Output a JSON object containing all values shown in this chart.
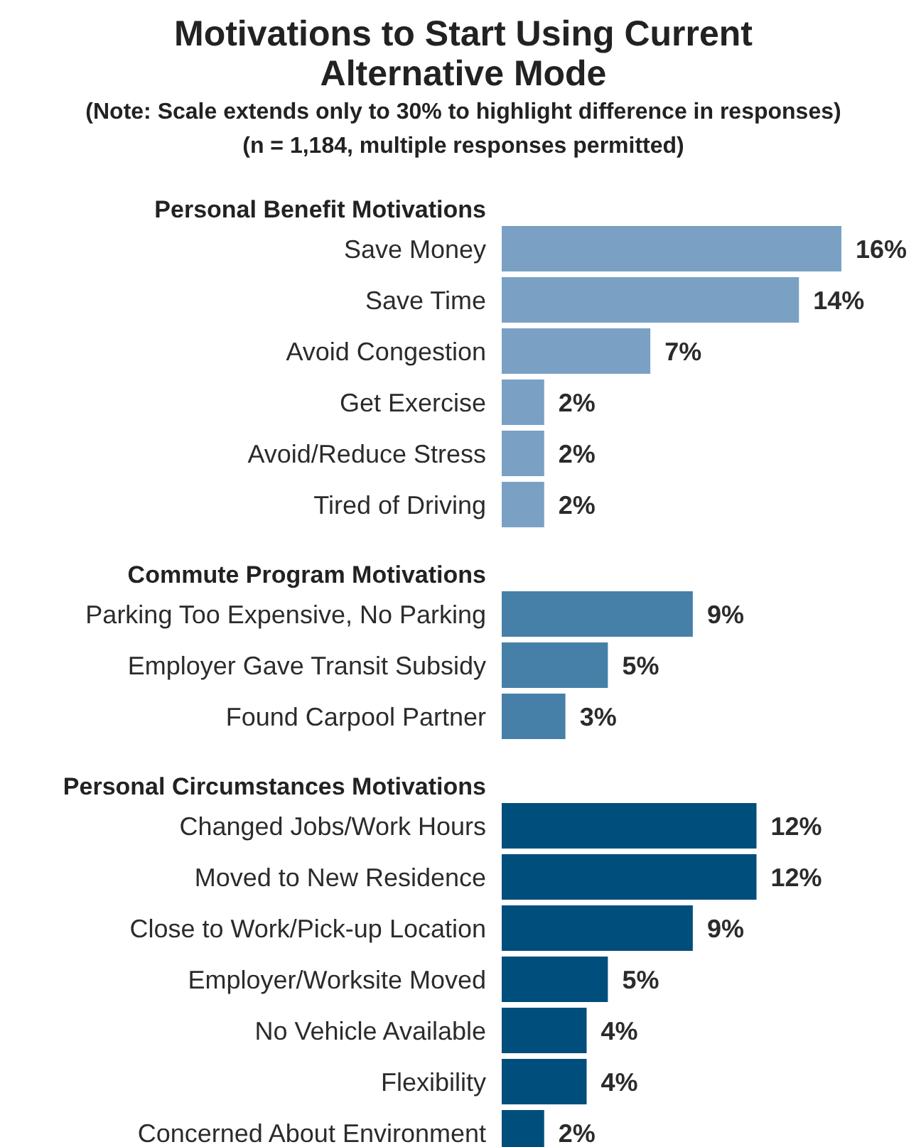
{
  "chart_data": {
    "type": "bar",
    "orientation": "horizontal",
    "stacked": true,
    "title": "Motivations to Start Using Current Alternative Mode",
    "subtitle": "(Note:  Scale extends only to 30% to highlight difference in responses)",
    "annotations": [
      "(n = 1,184, multiple responses permitted)"
    ],
    "categories": [
      "Save Money",
      "Save Time",
      "Avoid Congestion",
      "Get Exercise",
      "Avoid/Reduce Stress",
      "Tired of Driving",
      "Parking Too Expensive, No Parking",
      "Employer Gave Transit Subsidy",
      "Found Carpool Partner",
      "Changed Jobs/Work Hours",
      "Moved to New Residence",
      "Close to Work/Pick-up Location",
      "Employer/Worksite Moved",
      "No Vehicle Available",
      "Flexibility",
      "Concerned About Environment"
    ],
    "series": [
      {
        "name": "Personal Benefit Motivations",
        "color": "#7aa1c4",
        "values": [
          16,
          14,
          7,
          2,
          2,
          2,
          null,
          null,
          null,
          null,
          null,
          null,
          null,
          null,
          null,
          null
        ],
        "value_labels": [
          "16%",
          "14%",
          "7%",
          "2%",
          "2%",
          "2%",
          null,
          null,
          null,
          null,
          null,
          null,
          null,
          null,
          null,
          null
        ]
      },
      {
        "name": "Commute Program Motivations",
        "color": "#4680a8",
        "values": [
          null,
          null,
          null,
          null,
          null,
          null,
          9,
          5,
          3,
          null,
          null,
          null,
          null,
          null,
          null,
          null
        ],
        "value_labels": [
          null,
          null,
          null,
          null,
          null,
          null,
          "9%",
          "5%",
          "3%",
          null,
          null,
          null,
          null,
          null,
          null,
          null
        ]
      },
      {
        "name": "Personal Circumstances Motivations",
        "color": "#004e7c",
        "values": [
          null,
          null,
          null,
          null,
          null,
          null,
          null,
          null,
          null,
          12,
          12,
          9,
          5,
          4,
          4,
          2
        ],
        "value_labels": [
          null,
          null,
          null,
          null,
          null,
          null,
          null,
          null,
          null,
          "12%",
          "12%",
          "9%",
          "5%",
          "4%",
          "4%",
          "2%"
        ]
      }
    ]
  }
}
